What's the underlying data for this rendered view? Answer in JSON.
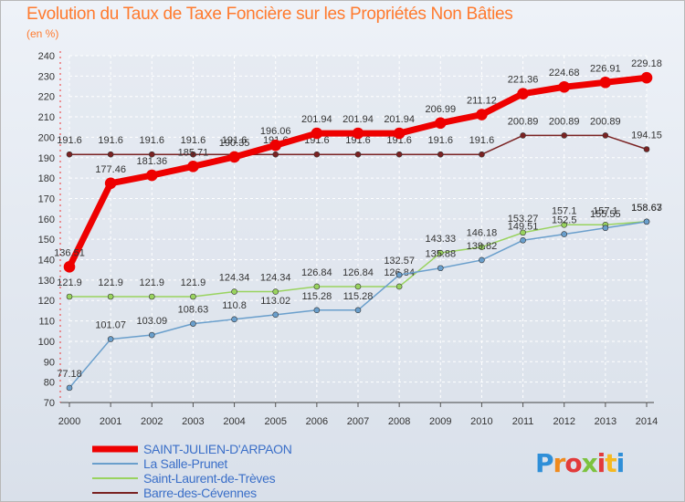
{
  "title": "Evolution du Taux de Taxe Foncière sur les Propriétés Non Bâties",
  "subtitle": "(en %)",
  "logo": {
    "letters": [
      "P",
      "r",
      "o",
      "x",
      "i",
      "t",
      "i"
    ],
    "colors": [
      "#2f8fd8",
      "#f08a1c",
      "#e23a3a",
      "#7cc23f",
      "#e23a3a",
      "#f5b921",
      "#2f8fd8"
    ]
  },
  "chart_data": {
    "type": "line",
    "x": [
      "2000",
      "2001",
      "2002",
      "2003",
      "2004",
      "2005",
      "2006",
      "2007",
      "2008",
      "2009",
      "2010",
      "2011",
      "2012",
      "2013",
      "2014"
    ],
    "ylim": [
      70,
      240
    ],
    "yticks": [
      70,
      80,
      90,
      100,
      110,
      120,
      130,
      140,
      150,
      160,
      170,
      180,
      190,
      200,
      210,
      220,
      230,
      240
    ],
    "grid": true,
    "legend_position": "bottom-left",
    "series": [
      {
        "name": "Barre-des-Cévennes",
        "color": "#7a2222",
        "values": [
          191.6,
          191.6,
          191.6,
          191.6,
          191.6,
          191.6,
          191.6,
          191.6,
          191.6,
          191.6,
          191.6,
          200.89,
          200.89,
          200.89,
          194.15
        ],
        "labels": [
          "191.6",
          "191.6",
          "191.6",
          "191.6",
          "191.6",
          "191.6",
          "191.6",
          "191.6",
          "191.6",
          "191.6",
          "191.6",
          "200.89",
          "200.89",
          "200.89",
          "194.15"
        ]
      },
      {
        "name": "Saint-Laurent-de-Trèves",
        "color": "#99d35f",
        "values": [
          121.9,
          121.9,
          121.9,
          121.9,
          124.34,
          124.34,
          126.84,
          126.84,
          126.84,
          143.33,
          146.18,
          153.27,
          157.1,
          157.1,
          158.67
        ],
        "labels": [
          "121.9",
          "121.9",
          "121.9",
          "121.9",
          "124.34",
          "124.34",
          "126.84",
          "126.84",
          "126.84",
          "143.33",
          "146.18",
          "153.27",
          "157.1",
          "157.1",
          "158.67"
        ]
      },
      {
        "name": "La Salle-Prunet",
        "color": "#6a9fcc",
        "values": [
          77.18,
          101.07,
          103.09,
          108.63,
          110.8,
          113.02,
          115.28,
          115.28,
          132.57,
          135.88,
          139.82,
          149.51,
          152.5,
          155.55,
          158.63
        ],
        "labels": [
          "77.18",
          "101.07",
          "103.09",
          "108.63",
          "110.8",
          "113.02",
          "115.28",
          "115.28",
          "132.57",
          "135.88",
          "139.82",
          "149.51",
          "152.5",
          "155.55",
          "158.63"
        ]
      },
      {
        "name": "SAINT-JULIEN-D'ARPAON",
        "color": "#ee0000",
        "values": [
          136.51,
          177.46,
          181.36,
          185.71,
          190.35,
          196.06,
          201.94,
          201.94,
          201.94,
          206.99,
          211.12,
          221.36,
          224.68,
          226.91,
          229.18
        ],
        "labels": [
          "136.51",
          "177.46",
          "181.36",
          "185.71",
          "190.35",
          "196.06",
          "201.94",
          "201.94",
          "201.94",
          "206.99",
          "211.12",
          "221.36",
          "224.68",
          "226.91",
          "229.18"
        ]
      }
    ]
  },
  "legend": [
    {
      "label": "SAINT-JULIEN-D'ARPAON",
      "color": "#ee0000",
      "thickness": 7
    },
    {
      "label": "La Salle-Prunet",
      "color": "#6a9fcc",
      "thickness": 2
    },
    {
      "label": "Saint-Laurent-de-Trèves",
      "color": "#99d35f",
      "thickness": 2
    },
    {
      "label": "Barre-des-Cévennes",
      "color": "#7a2222",
      "thickness": 2
    }
  ]
}
